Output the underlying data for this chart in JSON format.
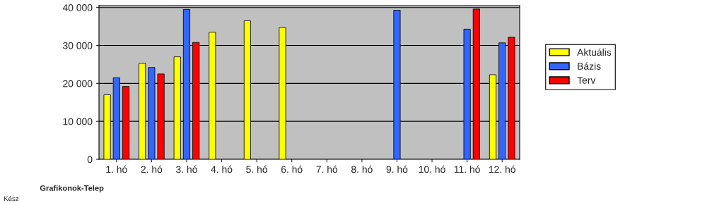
{
  "chart_data": {
    "type": "bar",
    "categories": [
      "1. hó",
      "2. hó",
      "3. hó",
      "4. hó",
      "5. hó",
      "6. hó",
      "7. hó",
      "8. hó",
      "9. hó",
      "10. hó",
      "11. hó",
      "12. hó"
    ],
    "series": [
      {
        "name": "Aktuális",
        "color": "#ffff00",
        "values": [
          17000,
          25300,
          27000,
          33500,
          36500,
          34700,
          null,
          null,
          null,
          null,
          null,
          22300
        ]
      },
      {
        "name": "Bázis",
        "color": "#3366ff",
        "values": [
          21500,
          24200,
          39500,
          null,
          null,
          null,
          null,
          null,
          39300,
          null,
          34300,
          30700
        ]
      },
      {
        "name": "Terv",
        "color": "#ff0000",
        "values": [
          19200,
          22500,
          30800,
          null,
          null,
          null,
          null,
          null,
          null,
          null,
          39600,
          32200
        ]
      }
    ],
    "ylim": [
      0,
      40500
    ],
    "yticks": [
      {
        "value": 0,
        "label": "0"
      },
      {
        "value": 10000,
        "label": "10 000"
      },
      {
        "value": 20000,
        "label": "20 000"
      },
      {
        "value": 30000,
        "label": "30 000"
      },
      {
        "value": 40000,
        "label": "40 000"
      }
    ],
    "grid": "y",
    "legend": "right",
    "annotations": [
      "Grafikonok-Telep",
      "Kész"
    ]
  }
}
